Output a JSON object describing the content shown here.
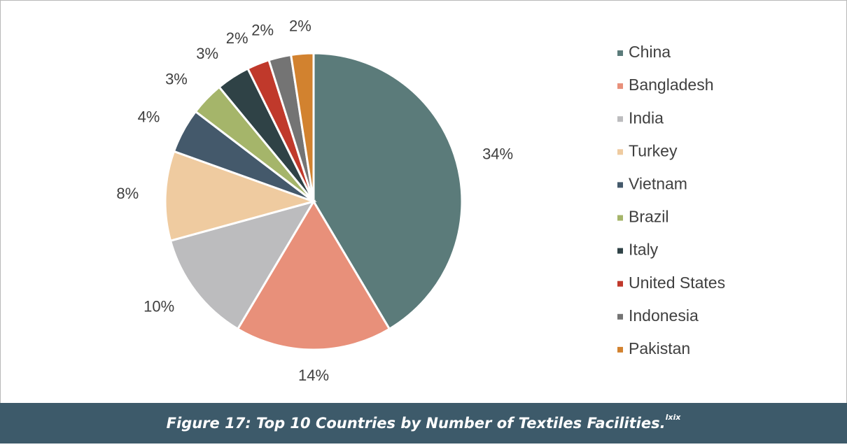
{
  "chart_data": {
    "type": "pie",
    "categories": [
      "China",
      "Bangladesh",
      "India",
      "Turkey",
      "Vietnam",
      "Brazil",
      "Italy",
      "United States",
      "Indonesia",
      "Pakistan"
    ],
    "values": [
      34,
      14,
      10,
      8,
      4,
      3,
      3,
      2,
      2,
      2
    ],
    "value_labels": [
      "34%",
      "14%",
      "10%",
      "8%",
      "4%",
      "3%",
      "3%",
      "2%",
      "2%",
      "2%"
    ],
    "colors": [
      "#5b7b7a",
      "#e8907a",
      "#bcbcbe",
      "#efcba0",
      "#44596b",
      "#a5b56a",
      "#2f4246",
      "#c0392b",
      "#747474",
      "#d2822f"
    ],
    "legend": "right",
    "caption": "Figure 17: Top 10 Countries by Number of Textiles Facilities.",
    "caption_note": "lxix"
  }
}
